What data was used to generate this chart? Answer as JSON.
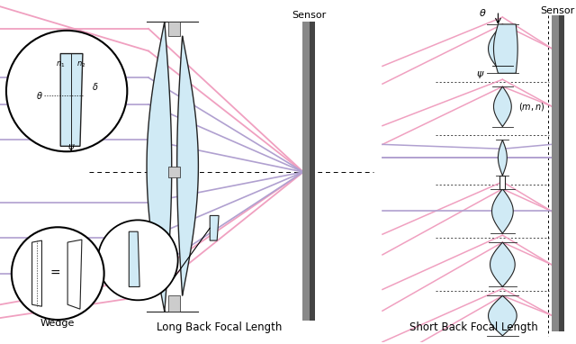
{
  "bg_color": "#ffffff",
  "pink": "#F0A0C0",
  "purple": "#B0A0D0",
  "lens_fill": "#D0EAF5",
  "lens_edge": "#222222",
  "title_left": "Long Back Focal Length",
  "title_right": "Short Back Focal Length",
  "sensor_label": "Sensor",
  "wedge_label": "Wedge"
}
